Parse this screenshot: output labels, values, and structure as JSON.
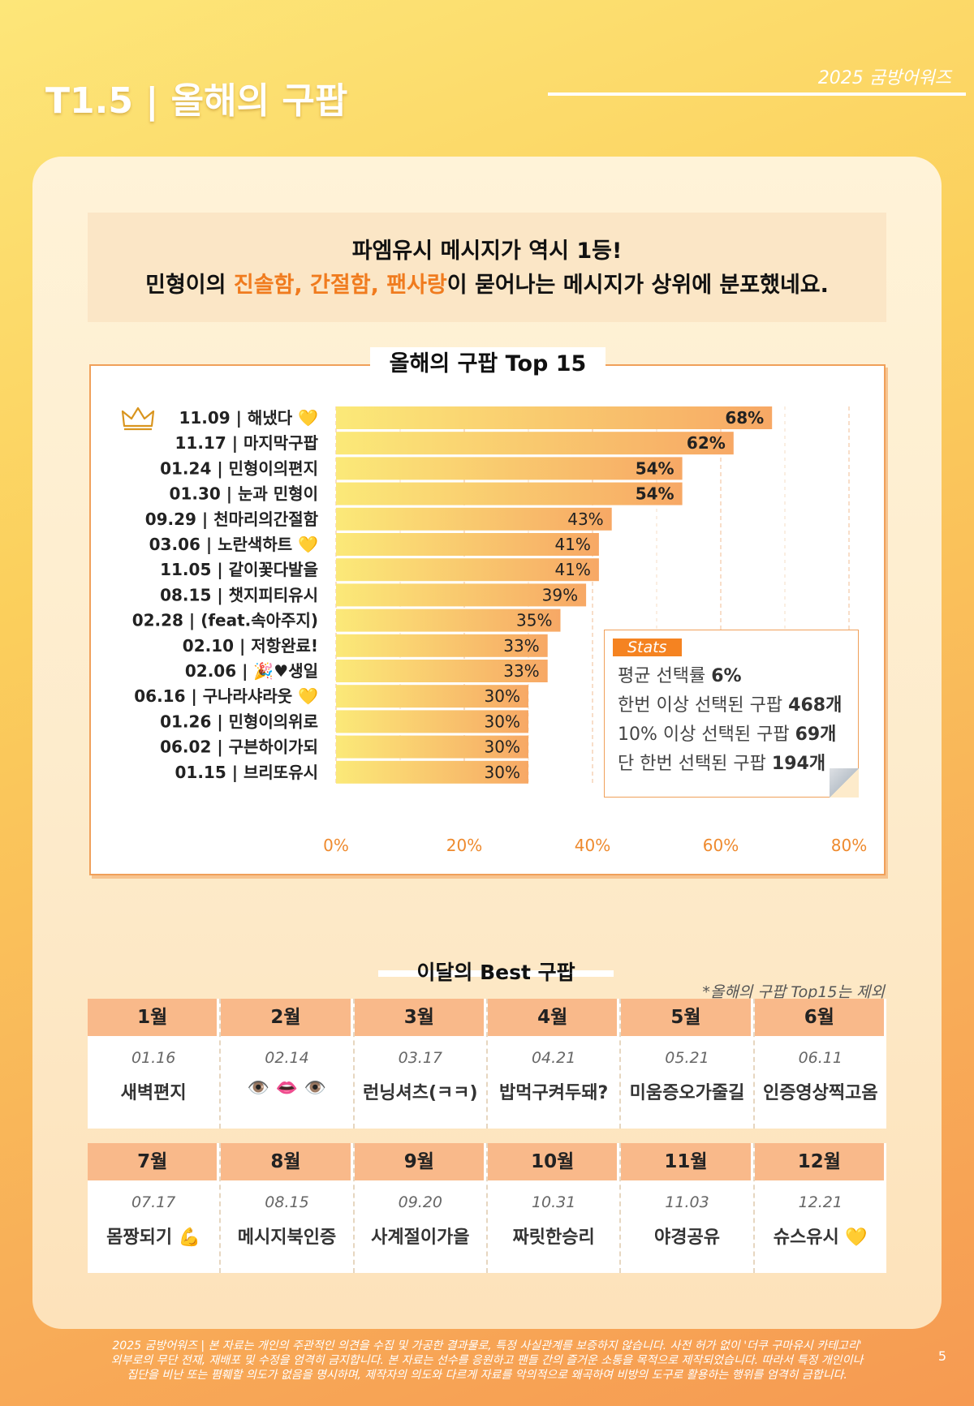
{
  "header": {
    "title": "T1.5 | 올해의 구팝",
    "brand": "2025 굼방어워즈"
  },
  "summary": {
    "line1": "파엠유시 메시지가 역시 1등!",
    "line2_pre": "민형이의 ",
    "line2_hl": "진솔함, 간절함, 팬사랑",
    "line2_post": "이 묻어나는 메시지가 상위에 분포했네요."
  },
  "chart_title": "올해의 구팝 Top 15",
  "chart_data": {
    "type": "bar",
    "orientation": "horizontal",
    "title": "올해의 구팝 Top 15",
    "xlim": [
      0,
      80
    ],
    "xticks": [
      "0%",
      "20%",
      "40%",
      "60%",
      "80%"
    ],
    "categories": [
      "11.09 | 해냈다 💛",
      "11.17 | 마지막구팝",
      "01.24 | 민형이의편지",
      "01.30 | 눈과 민형이",
      "09.29 | 천마리의간절함",
      "03.06 | 노란색하트 💛",
      "11.05 | 같이꽃다발을",
      "08.15 | 챗지피티유시",
      "02.28 | (feat.속아주지)",
      "02.10 | 저항완료!",
      "02.06 | 🎉♥생일",
      "06.16 | 구나라샤라웃 💛",
      "01.26 | 민형이의위로",
      "06.02 | 구븐하이가되",
      "01.15 | 브리또유시"
    ],
    "values": [
      68,
      62,
      54,
      54,
      43,
      41,
      41,
      39,
      35,
      33,
      33,
      30,
      30,
      30,
      30
    ],
    "value_labels": [
      "68%",
      "62%",
      "54%",
      "54%",
      "43%",
      "41%",
      "41%",
      "39%",
      "35%",
      "33%",
      "33%",
      "30%",
      "30%",
      "30%",
      "30%"
    ],
    "top_marker": "crown-icon"
  },
  "stats": {
    "tag": "Stats",
    "lines": [
      {
        "label": "평균 선택률 ",
        "value": "6%"
      },
      {
        "label": "한번 이상 선택된 구팝 ",
        "value": "468개"
      },
      {
        "label": "10% 이상 선택된 구팝 ",
        "value": "69개"
      },
      {
        "label": "단 한번 선택된 구팝 ",
        "value": "194개"
      }
    ]
  },
  "best": {
    "title": "이달의 Best 구팝",
    "note": "*올해의 구팝 Top15는 제외",
    "months": [
      {
        "month": "1월",
        "date": "01.16",
        "name": "새벽편지"
      },
      {
        "month": "2월",
        "date": "02.14",
        "name": "👁️ 👄 👁️"
      },
      {
        "month": "3월",
        "date": "03.17",
        "name": "런닝셔츠(ㅋㅋ)"
      },
      {
        "month": "4월",
        "date": "04.21",
        "name": "밥먹구켜두돼?"
      },
      {
        "month": "5월",
        "date": "05.21",
        "name": "미움증오가줄길"
      },
      {
        "month": "6월",
        "date": "06.11",
        "name": "인증영상찍고옴"
      },
      {
        "month": "7월",
        "date": "07.17",
        "name": "몸짱되기 💪"
      },
      {
        "month": "8월",
        "date": "08.15",
        "name": "메시지북인증"
      },
      {
        "month": "9월",
        "date": "09.20",
        "name": "사계절이가을"
      },
      {
        "month": "10월",
        "date": "10.31",
        "name": "짜릿한승리"
      },
      {
        "month": "11월",
        "date": "11.03",
        "name": "야경공유"
      },
      {
        "month": "12월",
        "date": "12.21",
        "name": "슈스유시 💛"
      }
    ]
  },
  "footer": {
    "line1": "2025 굼방어워즈 | 본 자료는 개인의 주관적인 의견을 수집 및 가공한 결과물로, 특정 사실관계를 보증하지 않습니다. 사전 허가 없이 '더쿠 구마유시 카테고리'",
    "line2": "외부로의 무단 전재, 재배포 및 수정을 엄격히 금지합니다. 본 자료는 선수를 응원하고 팬들 간의 즐거운 소통을 목적으로 제작되었습니다. 따라서 특정 개인이나",
    "line3": "집단을 비난 또는 폄훼할 의도가 없음을 명시하며, 제작자의 의도와 다르게 자료를 악의적으로 왜곡하여 비방의 도구로 활용하는 행위를 엄격히 금합니다.",
    "page": "5"
  },
  "colors": {
    "accent": "#f58321",
    "bar_start": "#fbe978",
    "bar_end": "#f7a865",
    "month_header": "#f9b98a"
  }
}
